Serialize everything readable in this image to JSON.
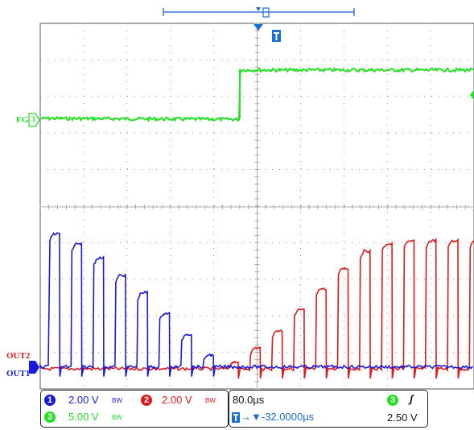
{
  "colors": {
    "ch1": "#1a1adc",
    "ch2": "#e01818",
    "ch3": "#22e022",
    "trigger": "#1a6fd6",
    "grid": "#7a7a7a"
  },
  "scope": {
    "trigger_marker": "T",
    "labels": {
      "fg": "FG",
      "fg_channel": "3",
      "out2": "OUT2",
      "out1": "OUT1"
    }
  },
  "status": {
    "ch1": {
      "num": "1",
      "scale": "2.00 V",
      "bw": "BW"
    },
    "ch2": {
      "num": "2",
      "scale": "2.00 V",
      "bw": "BW"
    },
    "ch3": {
      "num": "3",
      "scale": "5.00 V",
      "bw": "BW"
    },
    "timebase": "80.0µs",
    "trigger_delay": "→▼-32.0000µs",
    "trigger_source": "3",
    "trigger_edge": "ʃ",
    "trigger_level": "2.50 V"
  },
  "chart_data": {
    "type": "line",
    "x_range_us": [
      -432,
      368
    ],
    "x_divisions": 10,
    "y_divisions": 10,
    "grid": true,
    "series": [
      {
        "name": "FG",
        "channel": 3,
        "volts_per_div": 5.0,
        "low_div": 1.3,
        "high_div": 2.5,
        "edge_time_us": -32
      },
      {
        "name": "OUT1",
        "channel": 1,
        "volts_per_div": 2.0,
        "pulse_peaks_div": [
          3.9,
          3.6,
          3.2,
          2.7,
          2.2,
          1.6,
          1.0,
          0.4
        ],
        "baseline_div": 0.2
      },
      {
        "name": "OUT2",
        "channel": 2,
        "volts_per_div": 2.0,
        "pulse_peaks_div": [
          0.2,
          0.6,
          1.1,
          1.7,
          2.3,
          2.9,
          3.4,
          3.6,
          3.7,
          3.7,
          3.7,
          3.7,
          3.7,
          3.7
        ],
        "baseline_div": 0.0
      }
    ]
  }
}
